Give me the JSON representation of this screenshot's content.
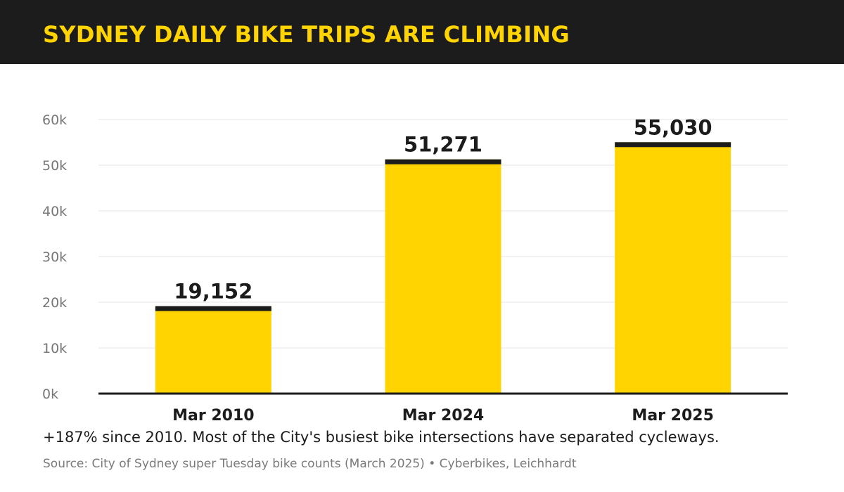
{
  "title": "SYDNEY DAILY BIKE TRIPS ARE CLIMBING",
  "caption": "+187% since 2010. Most of the City's busiest bike intersections have separated cycleways.",
  "source": "Source: City of Sydney super Tuesday bike counts (March 2025)  •  Cyberbikes, Leichhardt",
  "colors": {
    "header_bg": "#1c1c1c",
    "accent": "#ffd400",
    "bar_cap": "#1c1c1c",
    "grid": "#e6e6e6",
    "tick_text": "#777777"
  },
  "chart_data": {
    "type": "bar",
    "categories": [
      "Mar 2010",
      "Mar 2024",
      "Mar 2025"
    ],
    "values": [
      19152,
      51271,
      55030
    ],
    "value_labels": [
      "19,152",
      "51,271",
      "55,030"
    ],
    "y_ticks": [
      0,
      10000,
      20000,
      30000,
      40000,
      50000,
      60000
    ],
    "y_tick_labels": [
      "0k",
      "10k",
      "20k",
      "30k",
      "40k",
      "50k",
      "60k"
    ],
    "ylim": [
      0,
      60000
    ],
    "grid": true,
    "xlabel": "",
    "ylabel": ""
  }
}
